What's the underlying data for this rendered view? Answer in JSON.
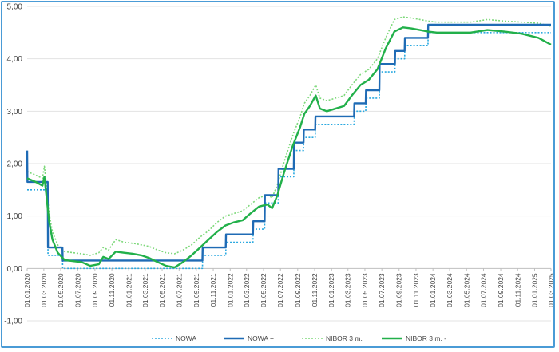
{
  "chart_data": {
    "type": "line",
    "title": "",
    "xlabel": "",
    "ylabel": "",
    "ylim": [
      -1,
      5
    ],
    "y_ticks": [
      -1,
      0,
      1,
      2,
      3,
      4,
      5
    ],
    "y_tick_labels": [
      "-1,00",
      "0,00",
      "1,00",
      "2,00",
      "3,00",
      "4,00",
      "5,00"
    ],
    "x_range": [
      "2020-01-01",
      "2025-03-01"
    ],
    "x_ticks": [
      "2020-01-01",
      "2020-03-01",
      "2020-05-01",
      "2020-07-01",
      "2020-09-01",
      "2020-11-01",
      "2021-01-01",
      "2021-03-01",
      "2021-05-01",
      "2021-07-01",
      "2021-09-01",
      "2021-11-01",
      "2022-01-01",
      "2022-03-01",
      "2022-05-01",
      "2022-07-01",
      "2022-09-01",
      "2022-11-01",
      "2023-01-01",
      "2023-03-01",
      "2023-05-01",
      "2023-07-01",
      "2023-09-01",
      "2023-11-01",
      "2024-01-01",
      "2024-03-01",
      "2024-05-01",
      "2024-07-01",
      "2024-09-01",
      "2024-11-01",
      "2025-01-01",
      "2025-03-01"
    ],
    "x_tick_labels": [
      "01.01.2020",
      "01.03.2020",
      "01.05.2020",
      "01.07.2020",
      "01.09.2020",
      "01.11.2020",
      "01.01.2021",
      "01.03.2021",
      "01.05.2021",
      "01.07.2021",
      "01.09.2021",
      "01.11.2021",
      "01.01.2022",
      "01.03.2022",
      "01.05.2022",
      "01.07.2022",
      "01.09.2022",
      "01.11.2022",
      "01.01.2023",
      "01.03.2023",
      "01.05.2023",
      "01.07.2023",
      "01.09.2023",
      "01.11.2023",
      "01.01.2024",
      "01.03.2024",
      "01.05.2024",
      "01.07.2024",
      "01.09.2024",
      "01.11.2024",
      "01.01.2025",
      "01.03.2025"
    ],
    "grid": "horizontal",
    "legend_position": "bottom",
    "series": [
      {
        "name": "NOWA",
        "color": "#2aa9e0",
        "style": "dotted",
        "points": [
          [
            "2020-01-01",
            1.5
          ],
          [
            "2020-03-15",
            1.5
          ],
          [
            "2020-03-16",
            0.25
          ],
          [
            "2020-05-07",
            0.25
          ],
          [
            "2020-05-08",
            0.0
          ],
          [
            "2021-09-23",
            0.0
          ],
          [
            "2021-09-24",
            0.25
          ],
          [
            "2021-12-16",
            0.25
          ],
          [
            "2021-12-17",
            0.5
          ],
          [
            "2022-03-24",
            0.5
          ],
          [
            "2022-03-25",
            0.75
          ],
          [
            "2022-05-05",
            0.75
          ],
          [
            "2022-05-06",
            1.25
          ],
          [
            "2022-06-23",
            1.25
          ],
          [
            "2022-06-24",
            1.75
          ],
          [
            "2022-08-18",
            1.75
          ],
          [
            "2022-08-19",
            2.25
          ],
          [
            "2022-09-22",
            2.25
          ],
          [
            "2022-09-23",
            2.5
          ],
          [
            "2022-11-03",
            2.5
          ],
          [
            "2022-11-04",
            2.75
          ],
          [
            "2022-12-15",
            2.75
          ],
          [
            "2022-12-16",
            2.75
          ],
          [
            "2023-03-23",
            2.75
          ],
          [
            "2023-03-24",
            3.0
          ],
          [
            "2023-05-04",
            3.0
          ],
          [
            "2023-05-05",
            3.25
          ],
          [
            "2023-06-22",
            3.25
          ],
          [
            "2023-06-23",
            3.75
          ],
          [
            "2023-08-17",
            3.75
          ],
          [
            "2023-08-18",
            4.0
          ],
          [
            "2023-09-21",
            4.0
          ],
          [
            "2023-09-22",
            4.25
          ],
          [
            "2023-12-14",
            4.25
          ],
          [
            "2023-12-15",
            4.5
          ],
          [
            "2025-03-01",
            4.5
          ]
        ]
      },
      {
        "name": "NOWA +",
        "color": "#1f6bb5",
        "style": "solid",
        "points": [
          [
            "2020-01-01",
            2.25
          ],
          [
            "2020-01-02",
            1.65
          ],
          [
            "2020-03-15",
            1.65
          ],
          [
            "2020-03-16",
            0.4
          ],
          [
            "2020-05-07",
            0.4
          ],
          [
            "2020-05-08",
            0.15
          ],
          [
            "2021-09-23",
            0.15
          ],
          [
            "2021-09-24",
            0.4
          ],
          [
            "2021-12-16",
            0.4
          ],
          [
            "2021-12-17",
            0.65
          ],
          [
            "2022-03-24",
            0.65
          ],
          [
            "2022-03-25",
            0.9
          ],
          [
            "2022-05-05",
            0.9
          ],
          [
            "2022-05-06",
            1.4
          ],
          [
            "2022-06-23",
            1.4
          ],
          [
            "2022-06-24",
            1.9
          ],
          [
            "2022-08-18",
            1.9
          ],
          [
            "2022-08-19",
            2.4
          ],
          [
            "2022-09-22",
            2.4
          ],
          [
            "2022-09-23",
            2.65
          ],
          [
            "2022-11-03",
            2.65
          ],
          [
            "2022-11-04",
            2.9
          ],
          [
            "2023-03-23",
            2.9
          ],
          [
            "2023-03-24",
            3.15
          ],
          [
            "2023-05-04",
            3.15
          ],
          [
            "2023-05-05",
            3.4
          ],
          [
            "2023-06-22",
            3.4
          ],
          [
            "2023-06-23",
            3.9
          ],
          [
            "2023-08-17",
            3.9
          ],
          [
            "2023-08-18",
            4.15
          ],
          [
            "2023-09-21",
            4.15
          ],
          [
            "2023-09-22",
            4.4
          ],
          [
            "2023-12-14",
            4.4
          ],
          [
            "2023-12-15",
            4.65
          ],
          [
            "2025-03-01",
            4.65
          ]
        ]
      },
      {
        "name": "NIBOR 3 m.",
        "color": "#7dd87a",
        "style": "dotted",
        "points": [
          [
            "2020-01-01",
            1.85
          ],
          [
            "2020-02-01",
            1.78
          ],
          [
            "2020-02-25",
            1.72
          ],
          [
            "2020-03-03",
            1.95
          ],
          [
            "2020-03-10",
            1.6
          ],
          [
            "2020-03-20",
            1.05
          ],
          [
            "2020-04-01",
            0.7
          ],
          [
            "2020-04-20",
            0.45
          ],
          [
            "2020-05-15",
            0.32
          ],
          [
            "2020-06-15",
            0.3
          ],
          [
            "2020-07-15",
            0.28
          ],
          [
            "2020-08-15",
            0.25
          ],
          [
            "2020-09-15",
            0.3
          ],
          [
            "2020-10-01",
            0.4
          ],
          [
            "2020-10-20",
            0.35
          ],
          [
            "2020-11-15",
            0.55
          ],
          [
            "2020-12-15",
            0.5
          ],
          [
            "2021-01-15",
            0.48
          ],
          [
            "2021-02-15",
            0.45
          ],
          [
            "2021-03-15",
            0.42
          ],
          [
            "2021-04-15",
            0.35
          ],
          [
            "2021-05-15",
            0.3
          ],
          [
            "2021-06-15",
            0.28
          ],
          [
            "2021-07-15",
            0.35
          ],
          [
            "2021-08-15",
            0.45
          ],
          [
            "2021-09-15",
            0.6
          ],
          [
            "2021-10-15",
            0.72
          ],
          [
            "2021-11-15",
            0.88
          ],
          [
            "2021-12-15",
            1.0
          ],
          [
            "2022-01-15",
            1.05
          ],
          [
            "2022-02-15",
            1.1
          ],
          [
            "2022-03-15",
            1.22
          ],
          [
            "2022-04-15",
            1.35
          ],
          [
            "2022-05-15",
            1.4
          ],
          [
            "2022-06-01",
            1.35
          ],
          [
            "2022-06-20",
            1.6
          ],
          [
            "2022-07-15",
            2.05
          ],
          [
            "2022-08-15",
            2.55
          ],
          [
            "2022-09-10",
            2.9
          ],
          [
            "2022-09-25",
            3.15
          ],
          [
            "2022-10-15",
            3.3
          ],
          [
            "2022-11-05",
            3.5
          ],
          [
            "2022-11-20",
            3.25
          ],
          [
            "2022-12-15",
            3.2
          ],
          [
            "2023-01-15",
            3.25
          ],
          [
            "2023-02-15",
            3.3
          ],
          [
            "2023-03-15",
            3.5
          ],
          [
            "2023-04-15",
            3.7
          ],
          [
            "2023-05-15",
            3.8
          ],
          [
            "2023-06-15",
            4.0
          ],
          [
            "2023-07-15",
            4.4
          ],
          [
            "2023-08-15",
            4.75
          ],
          [
            "2023-09-15",
            4.8
          ],
          [
            "2023-10-15",
            4.78
          ],
          [
            "2023-11-15",
            4.75
          ],
          [
            "2023-12-15",
            4.72
          ],
          [
            "2024-01-15",
            4.7
          ],
          [
            "2024-03-15",
            4.7
          ],
          [
            "2024-05-15",
            4.7
          ],
          [
            "2024-07-15",
            4.75
          ],
          [
            "2024-09-15",
            4.72
          ],
          [
            "2024-11-15",
            4.7
          ],
          [
            "2025-01-15",
            4.68
          ],
          [
            "2025-03-01",
            4.62
          ]
        ]
      },
      {
        "name": "NIBOR 3 m. -",
        "color": "#22b04a",
        "style": "solid",
        "points": [
          [
            "2020-01-01",
            1.72
          ],
          [
            "2020-02-01",
            1.65
          ],
          [
            "2020-02-25",
            1.58
          ],
          [
            "2020-03-03",
            1.75
          ],
          [
            "2020-03-10",
            1.4
          ],
          [
            "2020-03-20",
            0.9
          ],
          [
            "2020-04-01",
            0.55
          ],
          [
            "2020-04-20",
            0.3
          ],
          [
            "2020-05-15",
            0.16
          ],
          [
            "2020-06-15",
            0.14
          ],
          [
            "2020-07-15",
            0.12
          ],
          [
            "2020-08-15",
            0.05
          ],
          [
            "2020-09-15",
            0.08
          ],
          [
            "2020-10-01",
            0.22
          ],
          [
            "2020-10-20",
            0.18
          ],
          [
            "2020-11-15",
            0.32
          ],
          [
            "2020-12-15",
            0.3
          ],
          [
            "2021-01-15",
            0.28
          ],
          [
            "2021-02-15",
            0.25
          ],
          [
            "2021-03-15",
            0.2
          ],
          [
            "2021-04-15",
            0.12
          ],
          [
            "2021-05-15",
            0.05
          ],
          [
            "2021-06-15",
            0.02
          ],
          [
            "2021-07-15",
            0.12
          ],
          [
            "2021-08-15",
            0.25
          ],
          [
            "2021-09-15",
            0.4
          ],
          [
            "2021-10-15",
            0.55
          ],
          [
            "2021-11-15",
            0.7
          ],
          [
            "2021-12-15",
            0.82
          ],
          [
            "2022-01-15",
            0.88
          ],
          [
            "2022-02-15",
            0.92
          ],
          [
            "2022-03-15",
            1.05
          ],
          [
            "2022-04-15",
            1.18
          ],
          [
            "2022-05-15",
            1.22
          ],
          [
            "2022-06-01",
            1.15
          ],
          [
            "2022-06-20",
            1.4
          ],
          [
            "2022-07-15",
            1.85
          ],
          [
            "2022-08-15",
            2.35
          ],
          [
            "2022-09-10",
            2.7
          ],
          [
            "2022-09-25",
            2.95
          ],
          [
            "2022-10-15",
            3.1
          ],
          [
            "2022-11-05",
            3.3
          ],
          [
            "2022-11-20",
            3.05
          ],
          [
            "2022-12-15",
            3.0
          ],
          [
            "2023-01-15",
            3.05
          ],
          [
            "2023-02-15",
            3.1
          ],
          [
            "2023-03-15",
            3.3
          ],
          [
            "2023-04-15",
            3.5
          ],
          [
            "2023-05-15",
            3.6
          ],
          [
            "2023-06-15",
            3.8
          ],
          [
            "2023-07-15",
            4.2
          ],
          [
            "2023-08-15",
            4.52
          ],
          [
            "2023-09-15",
            4.6
          ],
          [
            "2023-10-15",
            4.58
          ],
          [
            "2023-11-15",
            4.55
          ],
          [
            "2023-12-15",
            4.52
          ],
          [
            "2024-01-15",
            4.5
          ],
          [
            "2024-03-15",
            4.5
          ],
          [
            "2024-05-15",
            4.5
          ],
          [
            "2024-07-15",
            4.55
          ],
          [
            "2024-09-15",
            4.52
          ],
          [
            "2024-11-15",
            4.48
          ],
          [
            "2025-01-15",
            4.4
          ],
          [
            "2025-03-01",
            4.27
          ]
        ]
      }
    ]
  }
}
